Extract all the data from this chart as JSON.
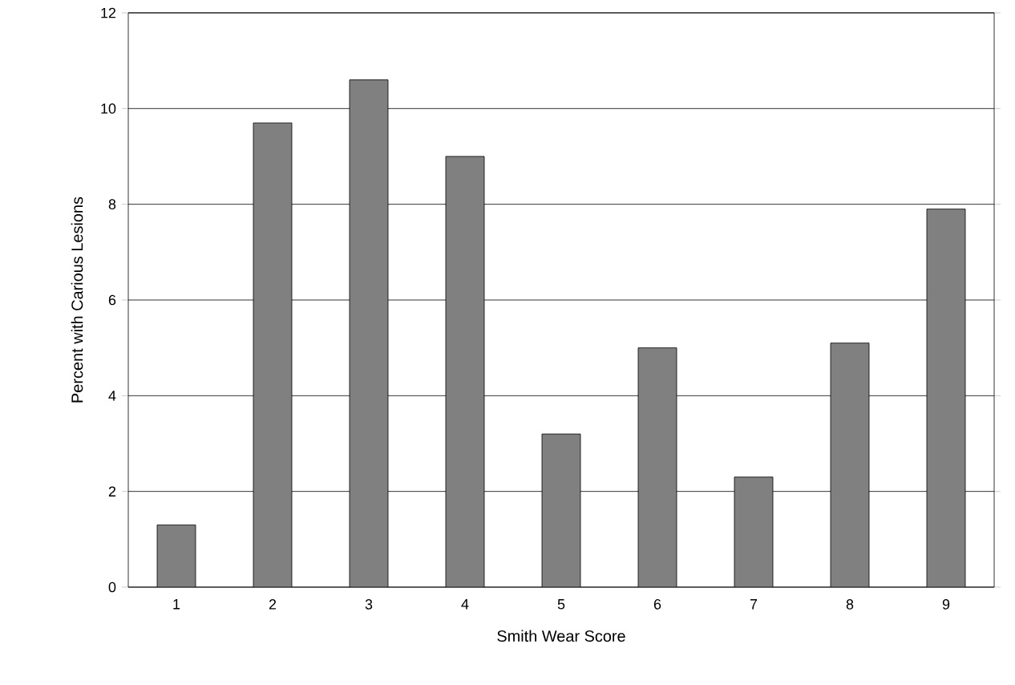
{
  "chart_data": {
    "type": "bar",
    "xlabel": "Smith Wear Score",
    "ylabel": "Percent with Carious Lesions",
    "categories": [
      "1",
      "2",
      "3",
      "4",
      "5",
      "6",
      "7",
      "8",
      "9"
    ],
    "values": [
      1.3,
      9.7,
      10.6,
      9.0,
      3.2,
      5.0,
      2.3,
      5.1,
      7.9
    ],
    "color": "#808080",
    "ylim": [
      0,
      12
    ],
    "yticks": [
      0,
      2,
      4,
      6,
      8,
      10,
      12
    ],
    "grid": "y"
  }
}
